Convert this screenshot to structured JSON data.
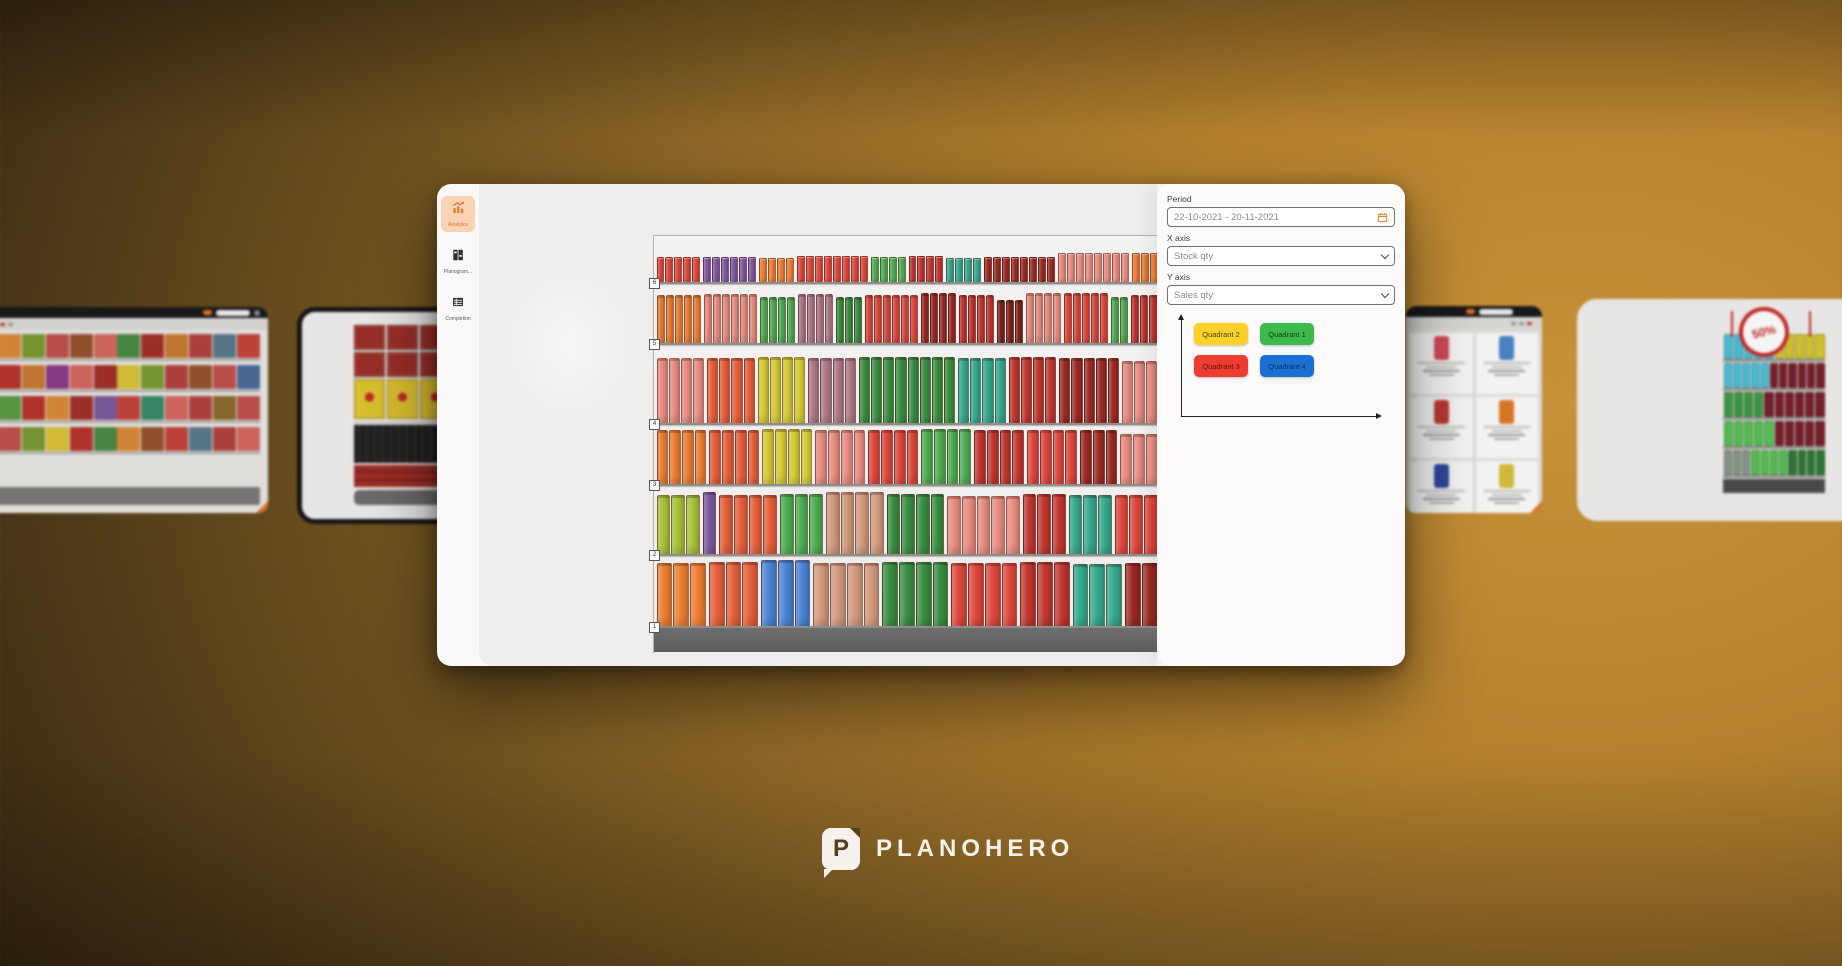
{
  "logo": {
    "text": "PLANOHERO",
    "mark_letter": "P"
  },
  "app": {
    "sidebar": {
      "items": [
        {
          "id": "analytics",
          "label": "Analytics",
          "active": true
        },
        {
          "id": "planogram",
          "label": "Planogram...",
          "active": false
        },
        {
          "id": "completion",
          "label": "Completion",
          "active": false
        }
      ],
      "accent_color": "#e8742c"
    },
    "panel": {
      "period_label": "Period",
      "period_value": "22-10-2021 - 20-11-2021",
      "x_axis_label": "X axis",
      "x_axis_value": "Stock qty",
      "y_axis_label": "Y axis",
      "y_axis_value": "Sales qty",
      "calendar_icon_color": "#e8842b",
      "quadrants": [
        {
          "label": "Quadrant 2",
          "color": "#fdd128",
          "text": "#4a3c00"
        },
        {
          "label": "Quadrant 1",
          "color": "#3eb94d",
          "text": "#0d3a12"
        },
        {
          "label": "Quadrant 3",
          "color": "#ee3c31",
          "text": "#57100c"
        },
        {
          "label": "Quadrant 4",
          "color": "#1b6fd3",
          "text": "#0a2f5c"
        }
      ]
    },
    "shelf": {
      "labels": [
        "6",
        "5",
        "4",
        "3",
        "2",
        "1"
      ],
      "palette": {
        "red": "#e0483d",
        "salmon": "#ec8f82",
        "crimson": "#c23730",
        "darkred": "#9c2b24",
        "maroon": "#7e241f",
        "orange": "#ef7f33",
        "orangered": "#e8603c",
        "yellow": "#d9cf35",
        "yellowgreen": "#a9c43a",
        "green": "#4db052",
        "dkgreen": "#3a8f41",
        "teal": "#35ab8e",
        "blue": "#4a85d8",
        "purple": "#8059a2",
        "mauve": "#b07a8a",
        "tan": "#d49c7e"
      },
      "rows": [
        {
          "label": "6",
          "cans": true,
          "segments": [
            [
              "red",
              5,
              1
            ],
            [
              "purple",
              6,
              1
            ],
            [
              "orange",
              4,
              0.95
            ],
            [
              "red",
              8,
              1.05
            ],
            [
              "green",
              4,
              1
            ],
            [
              "crimson",
              4,
              1.05
            ],
            [
              "teal",
              4,
              0.95
            ],
            [
              "darkred",
              8,
              1
            ],
            [
              "salmon",
              8,
              1.18
            ],
            [
              "orange",
              3,
              1.18
            ]
          ]
        },
        {
          "label": "5",
          "cans": false,
          "segments": [
            [
              "orange",
              5,
              1
            ],
            [
              "salmon",
              6,
              1.02
            ],
            [
              "green",
              4,
              0.95
            ],
            [
              "mauve",
              4,
              1.02
            ],
            [
              "dkgreen",
              3,
              0.95
            ],
            [
              "red",
              6,
              1
            ],
            [
              "darkred",
              4,
              1.05
            ],
            [
              "crimson",
              4,
              1
            ],
            [
              "maroon",
              3,
              0.9
            ],
            [
              "salmon",
              4,
              1.05
            ],
            [
              "red",
              5,
              1.05
            ],
            [
              "green",
              2,
              0.95
            ],
            [
              "crimson",
              3,
              1
            ]
          ]
        },
        {
          "label": "4",
          "cans": false,
          "segments": [
            [
              "salmon",
              4,
              1
            ],
            [
              "orangered",
              4,
              1
            ],
            [
              "yellow",
              4,
              1.02
            ],
            [
              "mauve",
              4,
              1
            ],
            [
              "dkgreen",
              8,
              1.02
            ],
            [
              "teal",
              4,
              1
            ],
            [
              "crimson",
              4,
              1.02
            ],
            [
              "darkred",
              5,
              1
            ],
            [
              "salmon",
              3,
              0.95
            ]
          ]
        },
        {
          "label": "3",
          "cans": false,
          "segments": [
            [
              "orange",
              4,
              1
            ],
            [
              "orangered",
              4,
              1
            ],
            [
              "yellow",
              4,
              1.02
            ],
            [
              "salmon",
              4,
              1
            ],
            [
              "red",
              4,
              1
            ],
            [
              "green",
              4,
              1.02
            ],
            [
              "crimson",
              4,
              1
            ],
            [
              "red",
              4,
              1
            ],
            [
              "darkred",
              3,
              1
            ],
            [
              "salmon",
              3,
              0.92
            ]
          ]
        },
        {
          "label": "2",
          "cans": false,
          "segments": [
            [
              "yellowgreen",
              3,
              1
            ],
            [
              "purple",
              1,
              1.05
            ],
            [
              "orangered",
              4,
              1
            ],
            [
              "green",
              3,
              1.02
            ],
            [
              "tan",
              4,
              1.05
            ],
            [
              "dkgreen",
              4,
              1.02
            ],
            [
              "salmon",
              5,
              0.98
            ],
            [
              "crimson",
              3,
              1.02
            ],
            [
              "teal",
              3,
              1
            ],
            [
              "red",
              3,
              1
            ]
          ]
        },
        {
          "label": "1",
          "cans": false,
          "segments": [
            [
              "orange",
              3,
              1
            ],
            [
              "orangered",
              3,
              1.02
            ],
            [
              "blue",
              3,
              1.05
            ],
            [
              "tan",
              4,
              1
            ],
            [
              "dkgreen",
              4,
              1.02
            ],
            [
              "red",
              4,
              1
            ],
            [
              "crimson",
              3,
              1.02
            ],
            [
              "teal",
              3,
              0.98
            ],
            [
              "darkred",
              2,
              1
            ]
          ]
        }
      ]
    }
  },
  "carousel": {
    "editor": {
      "strips": [
        [
          "#b5342c",
          "#d98a3a",
          "#7a9a33",
          "#c0514a",
          "#96522c",
          "#d4685f",
          "#4a8a44",
          "#a3302a",
          "#c87a33",
          "#b0443c",
          "#5a7a8a",
          "#c4443a"
        ],
        [
          "#4a8a44",
          "#b5342c",
          "#c87a33",
          "#8a3a86",
          "#d4685f",
          "#a3302a",
          "#d9c23a",
          "#7a9a33",
          "#b0443c",
          "#96522c",
          "#c0514a",
          "#4a6a9a"
        ],
        [
          "#c87a33",
          "#5a9a44",
          "#b5342c",
          "#d98a3a",
          "#a3302a",
          "#7a5a9a",
          "#c4443a",
          "#3a8a6a",
          "#d4685f",
          "#b0443c",
          "#8a6a2c",
          "#c0514a"
        ],
        [
          "#a3302a",
          "#c0514a",
          "#7a9a33",
          "#d9c23a",
          "#b5342c",
          "#4a8a44",
          "#d98a3a",
          "#96522c",
          "#c4443a",
          "#5a7a8a",
          "#b0443c",
          "#d4685f"
        ]
      ],
      "base_color": "#7b7b7b"
    },
    "pallet": {
      "crate_color": "#9e2f28",
      "box_color": "#e2c631",
      "box_dot_color": "#c62828",
      "bottle_stripes": "repeating-linear-gradient(90deg,#23211f 0 4px,#3c3a37 4px 5px,#23211f 5px 8px)",
      "bottle_caps": "linear-gradient(#dddbd8 0 4px, rgba(0,0,0,0) 4px)",
      "case_stripes": "repeating-linear-gradient(0deg,#a32f27 0 6px,#7e231d 6px 8px)"
    },
    "catalog": {
      "items": [
        "#d94a5a",
        "#4a86c8",
        "#c03a33",
        "#e07a28",
        "#2f4a9e",
        "#d8c23a"
      ]
    },
    "promo": {
      "badge_text": "50%",
      "badge_color": "#c62828",
      "rows": [
        [
          [
            "#4ec2da",
            5
          ],
          [
            "#d8c92e",
            5
          ]
        ],
        [
          [
            "#4ec2da",
            5
          ],
          [
            "#7a1f2b",
            6
          ]
        ],
        [
          [
            "#3f9b45",
            4
          ],
          [
            "#7a1f2b",
            6
          ]
        ],
        [
          [
            "#57c353",
            5
          ],
          [
            "#7a1f2b",
            5
          ]
        ],
        [
          [
            "#8a9a8a",
            3
          ],
          [
            "#57c353",
            4
          ],
          [
            "#2f7a35",
            4
          ]
        ]
      ]
    }
  }
}
